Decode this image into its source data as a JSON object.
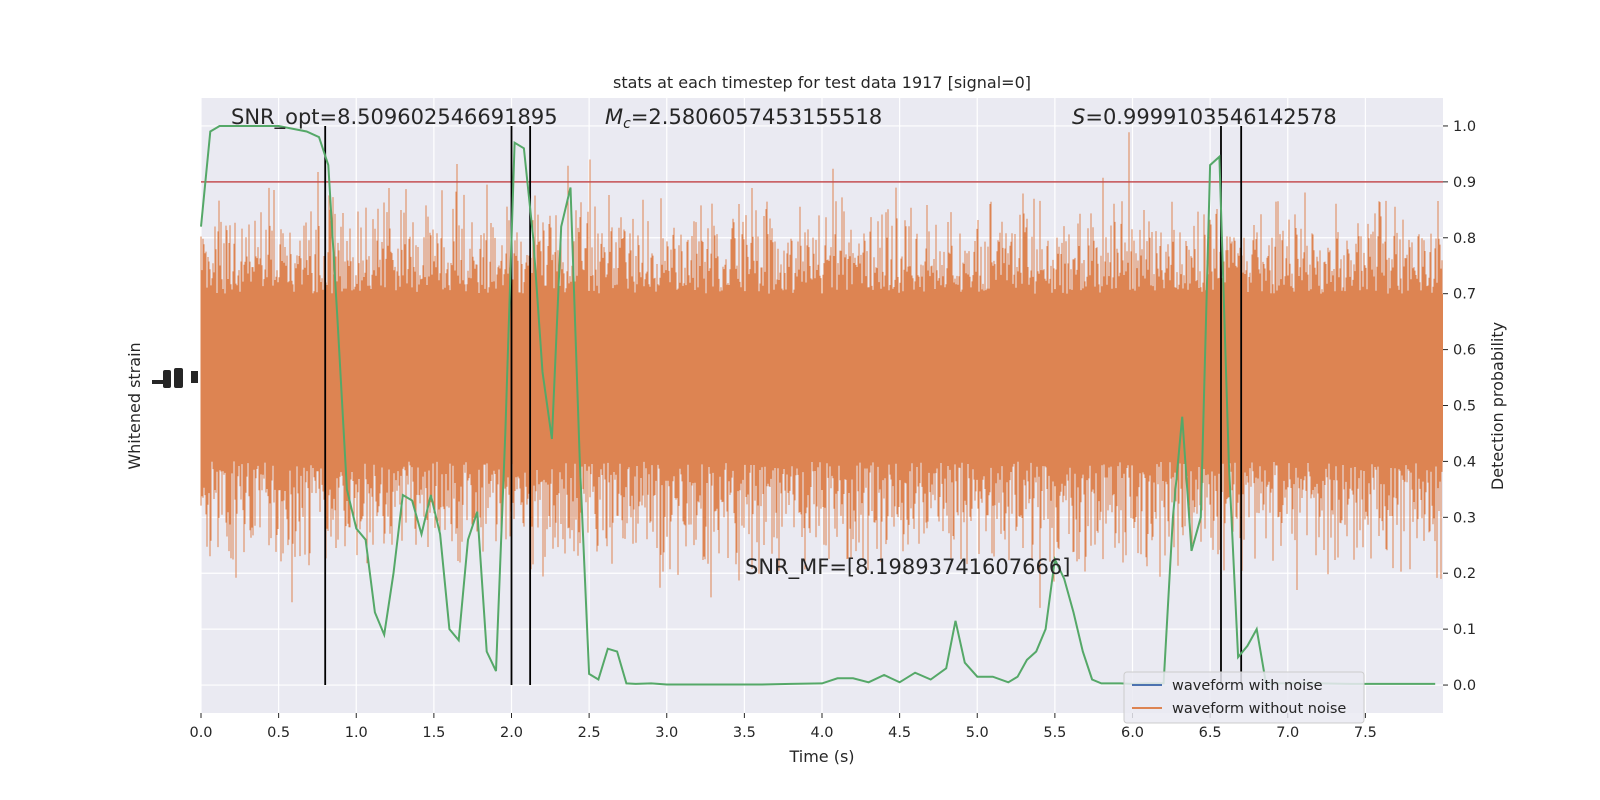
{
  "chart_data": {
    "type": "line",
    "title": "stats at each timestep for test data 1917 [signal=0]",
    "xlabel": "Time (s)",
    "ylabel_left": "Whitened strain",
    "ylabel_right": "Detection probability",
    "xlim": [
      0,
      8
    ],
    "ylim_right": [
      -0.05,
      1.05
    ],
    "x_ticks": [
      0.0,
      0.5,
      1.0,
      1.5,
      2.0,
      2.5,
      3.0,
      3.5,
      4.0,
      4.5,
      5.0,
      5.5,
      6.0,
      6.5,
      7.0,
      7.5
    ],
    "x_tick_labels": [
      "0.0",
      "0.5",
      "1.0",
      "1.5",
      "2.0",
      "2.5",
      "3.0",
      "3.5",
      "4.0",
      "4.5",
      "5.0",
      "5.5",
      "6.0",
      "6.5",
      "7.0",
      "7.5"
    ],
    "y_ticks_right": [
      0.0,
      0.1,
      0.2,
      0.3,
      0.4,
      0.5,
      0.6,
      0.7,
      0.8,
      0.9,
      1.0
    ],
    "y_tick_labels_right": [
      "0.0",
      "0.1",
      "0.2",
      "0.3",
      "0.4",
      "0.5",
      "0.6",
      "0.7",
      "0.8",
      "0.9",
      "1.0"
    ],
    "annotations": {
      "snr_opt": "SNR_opt=8.509602546691895",
      "mc_symbol": "M",
      "mc_sub": "c",
      "mc_value": "=2.5806057453155518",
      "s_symbol": "S",
      "s_value": "=0.9999103546142578",
      "snr_mf": "SNR_MF=[8.19893741607666]"
    },
    "legend": {
      "placement": "lower-right",
      "entries": [
        "waveform with noise",
        "waveform without noise"
      ]
    },
    "threshold": 0.9,
    "vertical_lines_x": [
      0.8,
      2.0,
      2.12,
      6.57,
      6.7
    ],
    "series": [
      {
        "name": "waveform with noise",
        "color": "#4c72b0"
      },
      {
        "name": "waveform without noise",
        "color": "#dd8452"
      },
      {
        "color": "#55a868",
        "x": [
          0.0,
          0.06,
          0.12,
          0.3,
          0.5,
          0.68,
          0.76,
          0.82,
          0.88,
          0.94,
          1.0,
          1.06,
          1.12,
          1.18,
          1.24,
          1.3,
          1.36,
          1.42,
          1.48,
          1.54,
          1.6,
          1.66,
          1.72,
          1.78,
          1.84,
          1.9,
          1.96,
          2.02,
          2.08,
          2.14,
          2.2,
          2.26,
          2.32,
          2.38,
          2.44,
          2.5,
          2.56,
          2.62,
          2.68,
          2.74,
          2.8,
          2.9,
          3.0,
          3.2,
          3.4,
          3.6,
          3.8,
          4.0,
          4.1,
          4.2,
          4.3,
          4.4,
          4.5,
          4.6,
          4.7,
          4.8,
          4.86,
          4.92,
          5.0,
          5.1,
          5.2,
          5.26,
          5.32,
          5.38,
          5.44,
          5.5,
          5.56,
          5.62,
          5.68,
          5.74,
          5.8,
          5.86,
          5.92,
          6.0,
          6.1,
          6.2,
          6.26,
          6.32,
          6.38,
          6.44,
          6.5,
          6.56,
          6.62,
          6.68,
          6.74,
          6.8,
          6.86,
          6.92,
          7.0,
          7.2,
          7.4,
          7.6,
          7.8,
          7.95
        ],
        "values": [
          0.82,
          0.99,
          1.0,
          1.0,
          1.0,
          0.99,
          0.98,
          0.93,
          0.65,
          0.35,
          0.28,
          0.26,
          0.13,
          0.09,
          0.2,
          0.34,
          0.33,
          0.27,
          0.34,
          0.27,
          0.1,
          0.08,
          0.26,
          0.31,
          0.06,
          0.025,
          0.45,
          0.97,
          0.96,
          0.8,
          0.56,
          0.44,
          0.82,
          0.89,
          0.4,
          0.02,
          0.01,
          0.065,
          0.06,
          0.003,
          0.002,
          0.003,
          0.001,
          0.001,
          0.001,
          0.001,
          0.002,
          0.003,
          0.012,
          0.012,
          0.005,
          0.018,
          0.005,
          0.022,
          0.01,
          0.03,
          0.115,
          0.04,
          0.015,
          0.015,
          0.005,
          0.015,
          0.045,
          0.06,
          0.1,
          0.225,
          0.19,
          0.13,
          0.06,
          0.01,
          0.003,
          0.003,
          0.003,
          0.002,
          0.003,
          0.003,
          0.3,
          0.48,
          0.24,
          0.3,
          0.93,
          0.945,
          0.4,
          0.05,
          0.07,
          0.1,
          0.003,
          0.003,
          0.003,
          0.003,
          0.002,
          0.002,
          0.002,
          0.002
        ]
      }
    ],
    "colors": {
      "background": "#eaeaf2",
      "grid": "#ffffff",
      "threshold": "#c44e52",
      "vline": "#000000"
    }
  }
}
